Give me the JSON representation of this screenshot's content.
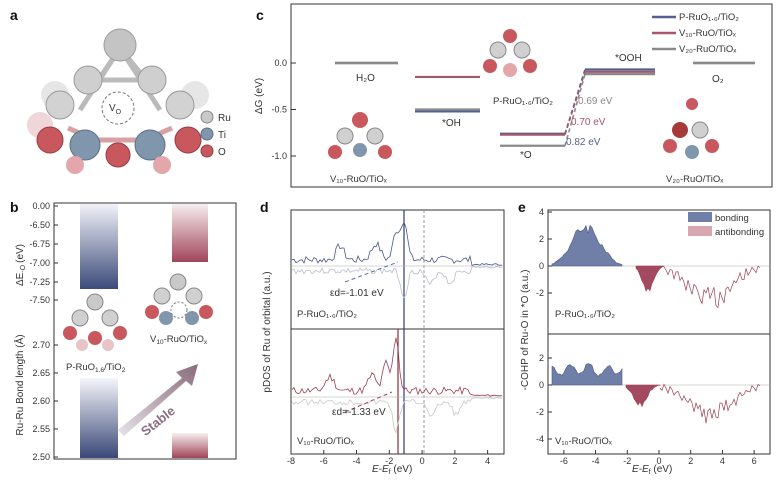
{
  "panels": {
    "a": {
      "label": "a",
      "vacancy": "V",
      "vacancy_sub": "O",
      "legend": [
        {
          "name": "Ru",
          "color": "#c9c9c9"
        },
        {
          "name": "Ti",
          "color": "#7f96ad"
        },
        {
          "name": "O",
          "color": "#c8575e"
        }
      ]
    },
    "b": {
      "label": "b",
      "ylabel_top": "ΔE",
      "ylabel_top_sub": "-O",
      "ylabel_top_unit": "(eV)",
      "ylabel_bottom": "Ru-Ru Bond length (Å)",
      "yticks_top": [
        "0.00",
        "-6.50",
        "-6.75",
        "-7.00",
        "-7.25",
        "-7.50"
      ],
      "yticks_bottom": [
        "2.70",
        "2.65",
        "2.60",
        "2.55",
        "2.50"
      ],
      "struct1": "P-RuO",
      "struct1_sub": "1.6",
      "struct1_tail": "/TiO",
      "struct1_tail_sub": "2",
      "struct2": "V",
      "struct2_sub": "10",
      "struct2_tail": "-RuO/TiO",
      "struct2_tail_sub": "x",
      "arrow_text": "Stable"
    },
    "c": {
      "label": "c",
      "ylabel": "ΔG (eV)",
      "yticks": [
        "0.0",
        "-0.5",
        "-1.0"
      ],
      "states": [
        "H₂O",
        "*OH",
        "*O",
        "*OOH",
        "O₂"
      ],
      "barriers": [
        "0.69 eV",
        "0.70 eV",
        "0.82 eV"
      ],
      "struct_left": "V₁₀-RuO/TiOₓ",
      "struct_mid": "P-RuO₁.₆/TiO₂",
      "struct_right": "V₂₀-RuO/TiOₓ",
      "legend": [
        "P-RuO₁.₆/TiO₂",
        "V₁₀-RuO/TiOₓ",
        "V₂₀-RuO/TiOₓ"
      ]
    },
    "d": {
      "label": "d",
      "ylabel": "pDOS of Ru of orbital (a.u.)",
      "xlabel": "E-E",
      "xlabel_sub": "f",
      "xlabel_unit": " (eV)",
      "xticks": [
        "-8",
        "-6",
        "-4",
        "-2",
        "0",
        "2",
        "4"
      ],
      "top_label": "P-RuO₁.₆/TiO₂",
      "top_eps": "εd=-1.01 eV",
      "bottom_label": "V₁₀-RuO/TiOₓ",
      "bottom_eps": "εd=-1.33 eV"
    },
    "e": {
      "label": "e",
      "ylabel": "-COHP of Ru-O in *O (a.u.)",
      "xlabel": "E-E",
      "xlabel_sub": "f",
      "xlabel_unit": " (eV)",
      "xticks": [
        "-6",
        "-4",
        "-2",
        "0",
        "2",
        "4",
        "6"
      ],
      "yticks": [
        "4",
        "2",
        "0",
        "-2",
        "2",
        "0",
        "-2",
        "-4"
      ],
      "legend": [
        "bonding",
        "antibonding"
      ],
      "top_label": "P-RuO₁.₆/TiO₂",
      "bottom_label": "V₁₀-RuO/TiOₓ"
    }
  },
  "chart_data": [
    {
      "type": "line",
      "title": "",
      "ylabel": "ΔG (eV)",
      "categories": [
        "H₂O",
        "*OH",
        "*O",
        "*OOH",
        "O₂"
      ],
      "series": [
        {
          "name": "P-RuO₁.₆/TiO₂",
          "values": [
            0.0,
            -0.52,
            -0.76,
            -0.07,
            0.0
          ]
        },
        {
          "name": "V₁₀-RuO/TiOₓ",
          "values": [
            0.0,
            -0.15,
            -0.77,
            -0.07,
            0.0
          ]
        },
        {
          "name": "V₂₀-RuO/TiOₓ",
          "values": [
            0.0,
            -0.5,
            -0.89,
            -0.07,
            0.0
          ]
        }
      ],
      "ylim": [
        -1.2,
        0.55
      ]
    },
    {
      "type": "bar",
      "title": "",
      "categories": [
        "P-RuO₁.₆/TiO₂",
        "V₁₀-RuO/TiOₓ"
      ],
      "series": [
        {
          "name": "ΔE-O (eV)",
          "values": [
            -7.3,
            -6.6
          ]
        },
        {
          "name": "Ru-Ru Bond length (Å)",
          "values": [
            2.64,
            2.535
          ]
        }
      ]
    }
  ]
}
